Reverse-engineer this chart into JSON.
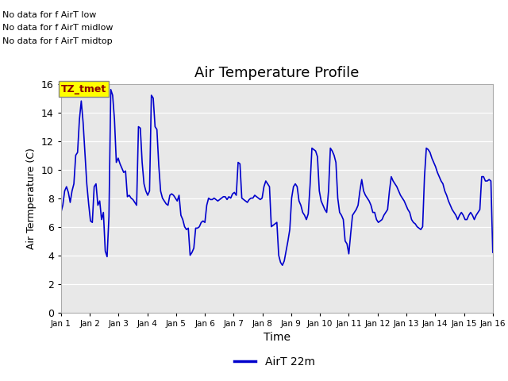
{
  "title": "Air Temperature Profile",
  "xlabel": "Time",
  "ylabel": "Air Termperature (C)",
  "legend_label": "AirT 22m",
  "line_color": "#0000cc",
  "fig_bg_color": "#ffffff",
  "plot_bg_color": "#e8e8e8",
  "ylim": [
    0,
    16
  ],
  "yticks": [
    0,
    2,
    4,
    6,
    8,
    10,
    12,
    14,
    16
  ],
  "xtick_labels": [
    "Jan 1",
    "Jan 2",
    "Jan 3",
    "Jan 4",
    "Jan 5",
    "Jan 6",
    "Jan 7",
    "Jan 8",
    "Jan 9",
    "Jan 10",
    "Jan 11",
    "Jan 12",
    "Jan 13",
    "Jan 14",
    "Jan 15",
    "Jan 16"
  ],
  "annotations": [
    "No data for f AirT low",
    "No data for f AirT midlow",
    "No data for f AirT midtop"
  ],
  "tz_label": "TZ_tmet",
  "temperatures": [
    7.0,
    7.5,
    8.5,
    8.8,
    8.4,
    7.7,
    8.5,
    9.0,
    11.0,
    11.2,
    13.5,
    14.8,
    13.3,
    11.1,
    9.0,
    7.6,
    6.4,
    6.3,
    8.8,
    9.0,
    7.5,
    7.8,
    6.5,
    7.0,
    4.3,
    3.9,
    6.7,
    15.6,
    15.2,
    13.5,
    10.5,
    10.8,
    10.4,
    10.1,
    9.8,
    9.9,
    8.1,
    8.2,
    8.0,
    7.9,
    7.7,
    7.5,
    13.0,
    12.9,
    10.5,
    9.0,
    8.5,
    8.2,
    8.5,
    15.2,
    15.0,
    13.0,
    12.8,
    10.3,
    8.5,
    8.0,
    7.8,
    7.6,
    7.5,
    8.2,
    8.3,
    8.2,
    8.0,
    7.8,
    8.2,
    6.8,
    6.5,
    6.0,
    5.8,
    5.9,
    4.0,
    4.2,
    4.5,
    5.9,
    5.9,
    6.0,
    6.3,
    6.4,
    6.3,
    7.5,
    8.0,
    7.9,
    7.9,
    8.0,
    7.9,
    7.8,
    7.9,
    8.0,
    8.1,
    8.1,
    7.9,
    8.1,
    8.0,
    8.3,
    8.4,
    8.2,
    10.5,
    10.4,
    8.0,
    7.9,
    7.8,
    7.7,
    7.9,
    8.0,
    8.0,
    8.2,
    8.1,
    8.0,
    7.9,
    8.0,
    8.8,
    9.2,
    9.0,
    8.8,
    6.0,
    6.1,
    6.2,
    6.3,
    4.0,
    3.5,
    3.3,
    3.6,
    4.3,
    5.0,
    5.8,
    8.0,
    8.8,
    9.0,
    8.8,
    7.8,
    7.5,
    7.0,
    6.8,
    6.5,
    6.9,
    8.9,
    11.5,
    11.4,
    11.3,
    10.9,
    8.5,
    7.8,
    7.5,
    7.2,
    7.0,
    8.5,
    11.5,
    11.3,
    11.0,
    10.5,
    8.0,
    7.0,
    6.8,
    6.5,
    5.0,
    4.8,
    4.1,
    5.5,
    6.8,
    7.0,
    7.2,
    7.5,
    8.5,
    9.3,
    8.5,
    8.2,
    8.0,
    7.8,
    7.5,
    7.0,
    7.0,
    6.5,
    6.3,
    6.4,
    6.5,
    6.8,
    7.0,
    7.2,
    8.5,
    9.5,
    9.2,
    9.0,
    8.8,
    8.5,
    8.2,
    8.0,
    7.8,
    7.5,
    7.2,
    7.0,
    6.5,
    6.3,
    6.2,
    6.0,
    5.9,
    5.8,
    6.0,
    9.5,
    11.5,
    11.4,
    11.2,
    10.8,
    10.5,
    10.2,
    9.8,
    9.5,
    9.2,
    9.0,
    8.5,
    8.2,
    7.8,
    7.5,
    7.2,
    7.0,
    6.8,
    6.5,
    6.8,
    7.0,
    6.8,
    6.5,
    6.5,
    6.8,
    7.0,
    6.8,
    6.5,
    6.8,
    7.0,
    7.2,
    9.5,
    9.5,
    9.2,
    9.2,
    9.3,
    9.2,
    4.2
  ]
}
